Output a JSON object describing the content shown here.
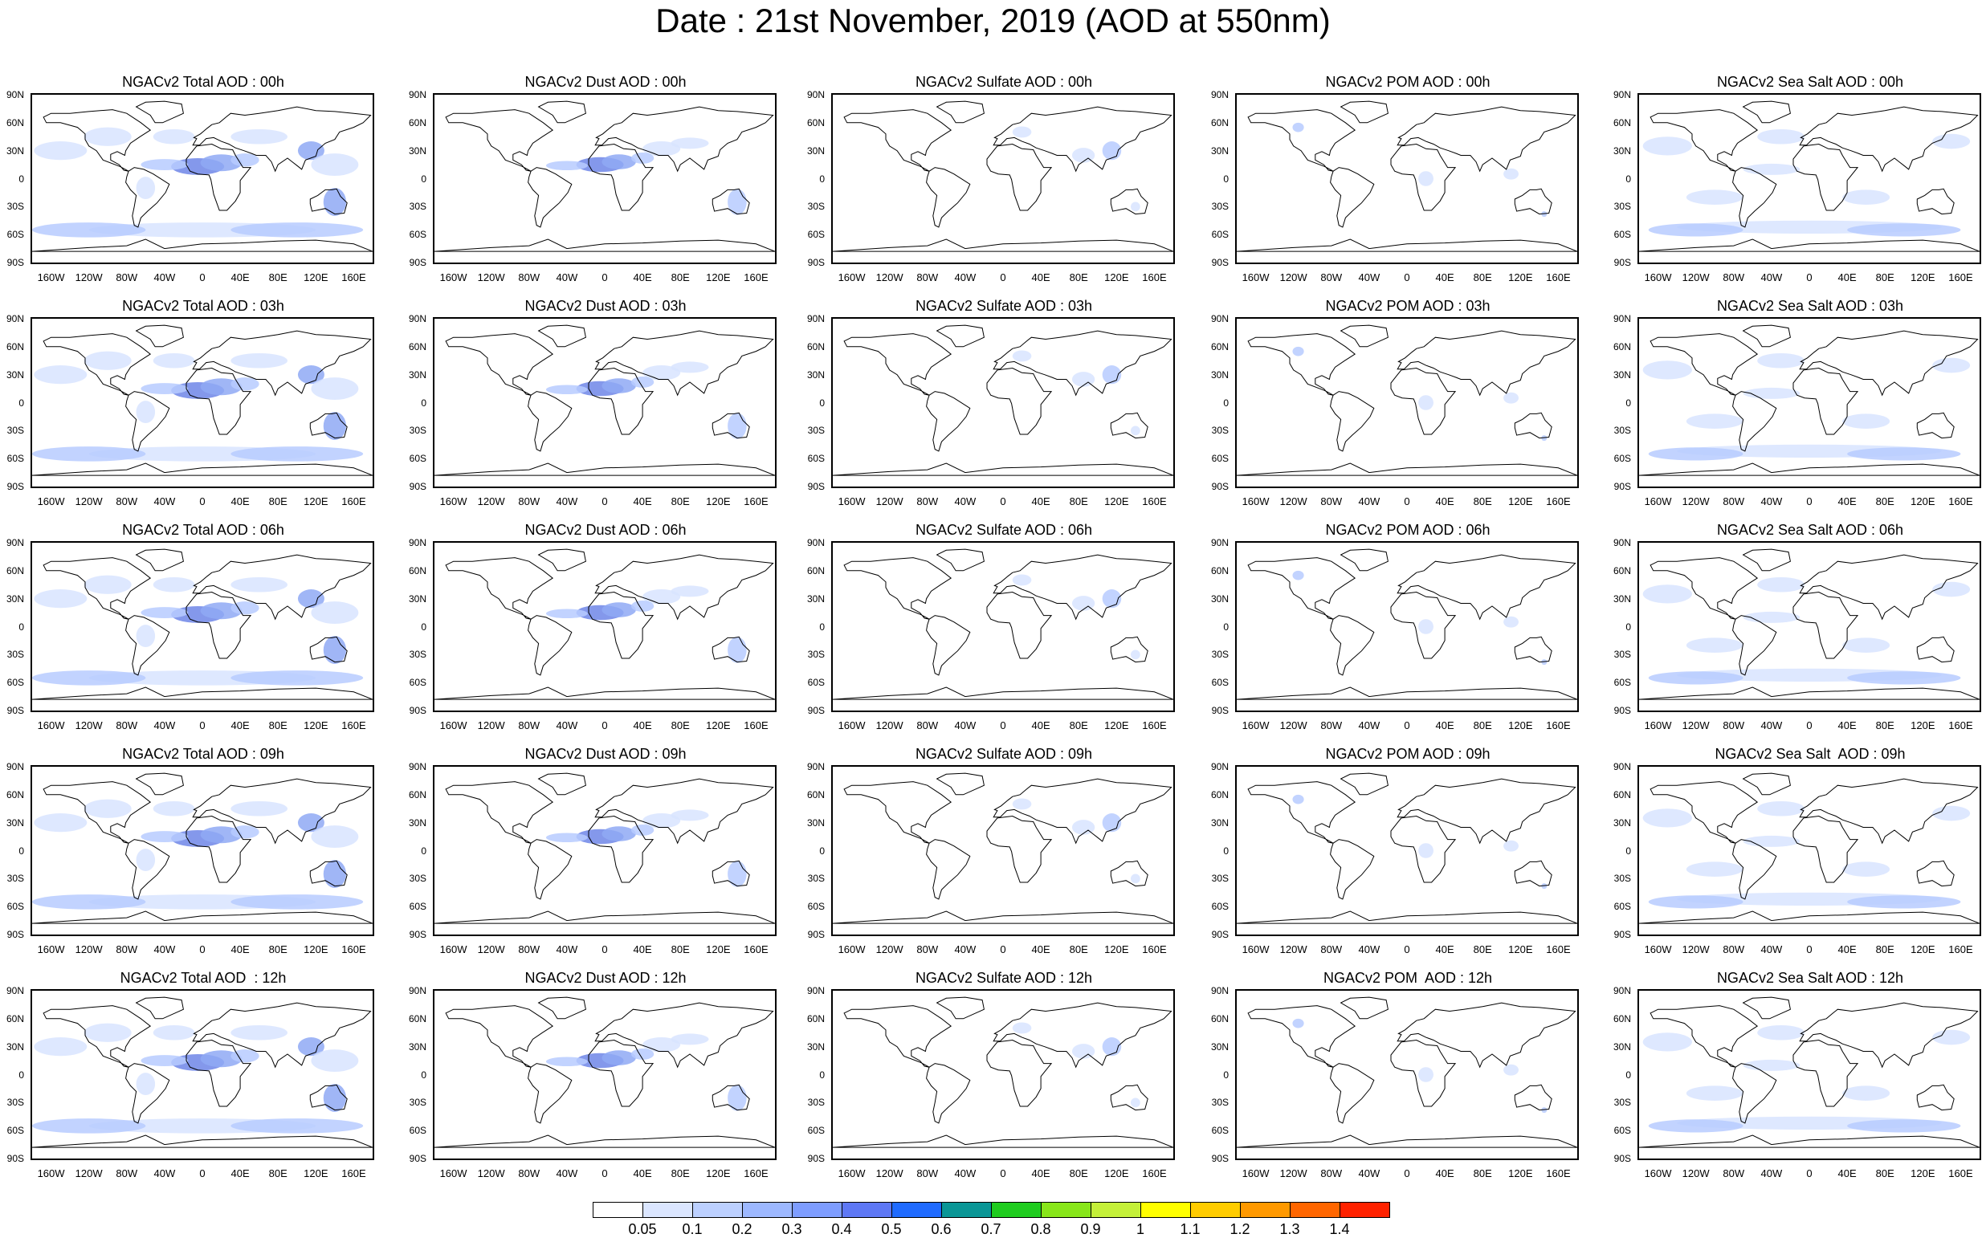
{
  "title": "Date : 21st November, 2019 (AOD at 550nm)",
  "chart_data": {
    "type": "heatmap",
    "description_units": "AOD at 550nm",
    "rows": [
      "00h",
      "03h",
      "06h",
      "09h",
      "12h"
    ],
    "columns": [
      "Total",
      "Dust",
      "Sulfate",
      "POM",
      "Sea Salt"
    ],
    "panels": [
      {
        "title": "NGACv2 Total AOD : 00h",
        "species": "total"
      },
      {
        "title": "NGACv2 Dust AOD : 00h",
        "species": "dust"
      },
      {
        "title": "NGACv2 Sulfate AOD : 00h",
        "species": "sulfate"
      },
      {
        "title": "NGACv2 POM AOD : 00h",
        "species": "pom"
      },
      {
        "title": "NGACv2 Sea Salt AOD : 00h",
        "species": "seasalt"
      },
      {
        "title": "NGACv2 Total AOD : 03h",
        "species": "total"
      },
      {
        "title": "NGACv2 Dust AOD : 03h",
        "species": "dust"
      },
      {
        "title": "NGACv2 Sulfate AOD : 03h",
        "species": "sulfate"
      },
      {
        "title": "NGACv2 POM AOD : 03h",
        "species": "pom"
      },
      {
        "title": "NGACv2 Sea Salt AOD : 03h",
        "species": "seasalt"
      },
      {
        "title": "NGACv2 Total AOD : 06h",
        "species": "total"
      },
      {
        "title": "NGACv2 Dust AOD : 06h",
        "species": "dust"
      },
      {
        "title": "NGACv2 Sulfate AOD : 06h",
        "species": "sulfate"
      },
      {
        "title": "NGACv2 POM AOD : 06h",
        "species": "pom"
      },
      {
        "title": "NGACv2 Sea Salt AOD : 06h",
        "species": "seasalt"
      },
      {
        "title": "NGACv2 Total AOD : 09h",
        "species": "total"
      },
      {
        "title": "NGACv2 Dust AOD : 09h",
        "species": "dust"
      },
      {
        "title": "NGACv2 Sulfate AOD : 09h",
        "species": "sulfate"
      },
      {
        "title": "NGACv2 POM AOD : 09h",
        "species": "pom"
      },
      {
        "title": "NGACv2 Sea Salt  AOD : 09h",
        "species": "seasalt"
      },
      {
        "title": "NGACv2 Total AOD  : 12h",
        "species": "total"
      },
      {
        "title": "NGACv2 Dust AOD : 12h",
        "species": "dust"
      },
      {
        "title": "NGACv2 Sulfate AOD : 12h",
        "species": "sulfate"
      },
      {
        "title": "NGACv2 POM  AOD : 12h",
        "species": "pom"
      },
      {
        "title": "NGACv2 Sea Salt AOD : 12h",
        "species": "seasalt"
      }
    ],
    "lat_ticks": [
      "90N",
      "60N",
      "30N",
      "0",
      "30S",
      "60S",
      "90S"
    ],
    "lat_values": [
      90,
      60,
      30,
      0,
      -30,
      -60,
      -90
    ],
    "lon_ticks": [
      "160W",
      "120W",
      "80W",
      "40W",
      "0",
      "40E",
      "80E",
      "120E",
      "160E"
    ],
    "lon_values": [
      -160,
      -120,
      -80,
      -40,
      0,
      40,
      80,
      120,
      160
    ],
    "xlim": [
      -180,
      180
    ],
    "ylim": [
      -90,
      90
    ],
    "colorbar": {
      "levels": [
        "0.05",
        "0.1",
        "0.2",
        "0.3",
        "0.4",
        "0.5",
        "0.6",
        "0.7",
        "0.8",
        "0.9",
        "1",
        "1.1",
        "1.2",
        "1.3",
        "1.4"
      ],
      "colors": [
        "#ffffff",
        "#dbe6ff",
        "#bcd0ff",
        "#9db8ff",
        "#7e9dff",
        "#5e78f5",
        "#1f6bff",
        "#0a9696",
        "#1fcc1f",
        "#88e61a",
        "#c4f039",
        "#ffff00",
        "#ffcc00",
        "#ff9900",
        "#ff6600",
        "#ff2200"
      ]
    },
    "plume_colors": {
      "light": "#d8e4ff",
      "mid": "#b7cbff",
      "strong": "#8fa9f5",
      "deep": "#6f86e8"
    }
  }
}
